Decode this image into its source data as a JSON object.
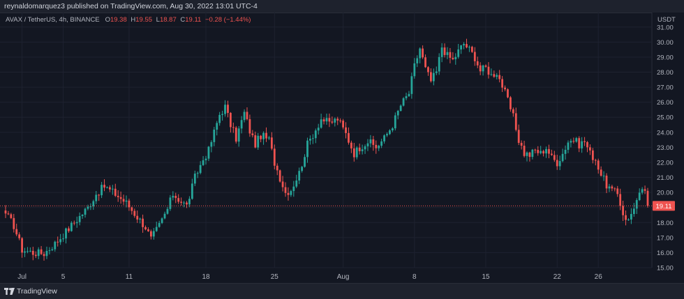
{
  "header": {
    "published": "reynaldomarquez3 published on TradingView.com, Aug 30, 2022 13:01 UTC-4"
  },
  "legend": {
    "symbol": "AVAX / TetherUS, 4h, BINANCE",
    "o_label": "O",
    "o_value": "19.38",
    "h_label": "H",
    "h_value": "19.55",
    "l_label": "L",
    "l_value": "18.87",
    "c_label": "C",
    "c_value": "19.11",
    "change": "−0.28 (−1.44%)"
  },
  "currency": "USDT",
  "footer": {
    "brand": "TradingView"
  },
  "colors": {
    "background": "#131722",
    "up": "#26a69a",
    "down": "#ef5350",
    "grid": "#1e2230",
    "text": "#b2b5be"
  },
  "chart_data": {
    "type": "candlestick",
    "symbol": "AVAX / TetherUS",
    "interval": "4h",
    "exchange": "BINANCE",
    "last_price": 19.11,
    "last_price_label": "19.11",
    "ylim": [
      15.0,
      31.5
    ],
    "y_ticks": [
      "15.00",
      "16.00",
      "17.00",
      "18.00",
      "19.00",
      "20.00",
      "21.00",
      "22.00",
      "23.00",
      "24.00",
      "25.00",
      "26.00",
      "27.00",
      "28.00",
      "29.00",
      "30.00",
      "31.00"
    ],
    "x_ticks": [
      {
        "label": "Jul",
        "index": 6
      },
      {
        "label": "5",
        "index": 21
      },
      {
        "label": "11",
        "index": 45
      },
      {
        "label": "18",
        "index": 73
      },
      {
        "label": "25",
        "index": 98
      },
      {
        "label": "Aug",
        "index": 123
      },
      {
        "label": "8",
        "index": 149
      },
      {
        "label": "15",
        "index": 175
      },
      {
        "label": "22",
        "index": 201
      },
      {
        "label": "26",
        "index": 216
      }
    ],
    "grid": true,
    "keypoints": [
      [
        0,
        18.6
      ],
      [
        3,
        17.8
      ],
      [
        6,
        16.2
      ],
      [
        10,
        16.0
      ],
      [
        14,
        15.95
      ],
      [
        18,
        16.6
      ],
      [
        22,
        17.4
      ],
      [
        26,
        18.2
      ],
      [
        30,
        19.0
      ],
      [
        33,
        19.9
      ],
      [
        36,
        20.4
      ],
      [
        40,
        19.9
      ],
      [
        44,
        19.3
      ],
      [
        47,
        18.6
      ],
      [
        51,
        17.7
      ],
      [
        53,
        16.9
      ],
      [
        56,
        17.8
      ],
      [
        59,
        18.9
      ],
      [
        61,
        19.9
      ],
      [
        64,
        19.4
      ],
      [
        66,
        19.1
      ],
      [
        69,
        21.0
      ],
      [
        72,
        22.2
      ],
      [
        74,
        22.8
      ],
      [
        76,
        24.0
      ],
      [
        78,
        25.2
      ],
      [
        80,
        25.7
      ],
      [
        82,
        24.5
      ],
      [
        84,
        23.6
      ],
      [
        87,
        25.3
      ],
      [
        89,
        24.1
      ],
      [
        91,
        23.2
      ],
      [
        93,
        23.8
      ],
      [
        96,
        23.5
      ],
      [
        98,
        22.0
      ],
      [
        100,
        21.0
      ],
      [
        102,
        20.0
      ],
      [
        104,
        20.2
      ],
      [
        107,
        21.3
      ],
      [
        110,
        23.2
      ],
      [
        113,
        24.2
      ],
      [
        115,
        24.9
      ],
      [
        118,
        24.6
      ],
      [
        121,
        24.9
      ],
      [
        124,
        23.9
      ],
      [
        127,
        22.6
      ],
      [
        129,
        23.0
      ],
      [
        132,
        23.4
      ],
      [
        135,
        23.0
      ],
      [
        138,
        23.6
      ],
      [
        141,
        24.5
      ],
      [
        144,
        25.8
      ],
      [
        147,
        26.6
      ],
      [
        149,
        28.4
      ],
      [
        151,
        29.6
      ],
      [
        153,
        28.2
      ],
      [
        155,
        27.4
      ],
      [
        157,
        28.0
      ],
      [
        159,
        29.7
      ],
      [
        161,
        29.1
      ],
      [
        163,
        28.8
      ],
      [
        165,
        29.4
      ],
      [
        167,
        29.9
      ],
      [
        169,
        29.5
      ],
      [
        171,
        29.0
      ],
      [
        173,
        28.1
      ],
      [
        175,
        28.3
      ],
      [
        177,
        27.8
      ],
      [
        179,
        28.0
      ],
      [
        181,
        27.1
      ],
      [
        183,
        26.1
      ],
      [
        185,
        25.0
      ],
      [
        187,
        23.5
      ],
      [
        189,
        22.6
      ],
      [
        191,
        22.5
      ],
      [
        193,
        22.8
      ],
      [
        195,
        22.6
      ],
      [
        197,
        23.0
      ],
      [
        199,
        22.3
      ],
      [
        201,
        22.0
      ],
      [
        203,
        22.6
      ],
      [
        205,
        23.4
      ],
      [
        207,
        23.5
      ],
      [
        209,
        23.2
      ],
      [
        211,
        23.4
      ],
      [
        213,
        22.6
      ],
      [
        215,
        22.2
      ],
      [
        217,
        21.2
      ],
      [
        219,
        20.5
      ],
      [
        221,
        20.1
      ],
      [
        223,
        19.9
      ],
      [
        225,
        18.6
      ],
      [
        227,
        18.1
      ],
      [
        229,
        19.1
      ],
      [
        231,
        19.8
      ],
      [
        233,
        20.2
      ],
      [
        234,
        19.11
      ]
    ]
  }
}
